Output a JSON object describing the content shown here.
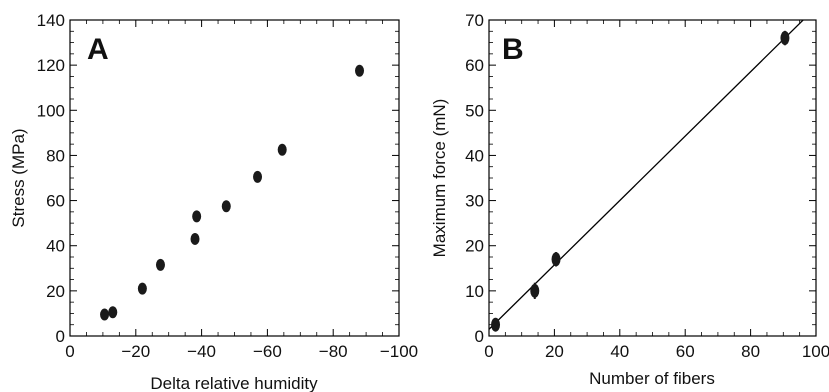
{
  "chart_data": [
    {
      "type": "scatter",
      "panel_label": "A",
      "xlabel": "Delta relative humidity",
      "ylabel": "Stress (MPa)",
      "xlim": [
        0,
        -100
      ],
      "ylim": [
        0,
        140
      ],
      "x_ticks": [
        0,
        -20,
        -40,
        -60,
        -80,
        -100
      ],
      "y_ticks": [
        0,
        20,
        40,
        60,
        80,
        100,
        120,
        140
      ],
      "x_tick_labels": [
        "0",
        "−20",
        "−40",
        "−60",
        "−80",
        "−100"
      ],
      "y_tick_labels": [
        "0",
        "20",
        "40",
        "60",
        "80",
        "100",
        "120",
        "140"
      ],
      "grid": false,
      "series": [
        {
          "x": [
            -10.5,
            -13,
            -22,
            -27.5,
            -38,
            -38.5,
            -47.5,
            -57,
            -64.5,
            -88
          ],
          "y": [
            9.5,
            10.5,
            21,
            31.5,
            43,
            53,
            57.5,
            70.5,
            82.5,
            117.5
          ]
        }
      ]
    },
    {
      "type": "scatter",
      "panel_label": "B",
      "xlabel": "Number of fibers",
      "ylabel": "Maximum force (mN)",
      "xlim": [
        0,
        100
      ],
      "ylim": [
        0,
        70
      ],
      "x_ticks": [
        0,
        20,
        40,
        60,
        80,
        100
      ],
      "y_ticks": [
        0,
        10,
        20,
        30,
        40,
        50,
        60,
        70
      ],
      "x_tick_labels": [
        "0",
        "20",
        "40",
        "60",
        "80",
        "100"
      ],
      "y_tick_labels": [
        "0",
        "10",
        "20",
        "30",
        "40",
        "50",
        "60",
        "70"
      ],
      "grid": false,
      "series": [
        {
          "x": [
            2,
            14,
            20.5,
            90.5
          ],
          "y": [
            2.5,
            10,
            17,
            66
          ],
          "y_error": [
            1.5,
            1.8,
            1.6,
            1.6
          ]
        }
      ],
      "fit_line": {
        "x": [
          0,
          100
        ],
        "y": [
          1.5,
          72.8
        ]
      }
    }
  ],
  "colors": {
    "marker": "#1a1a1a",
    "axis": "#000000"
  }
}
